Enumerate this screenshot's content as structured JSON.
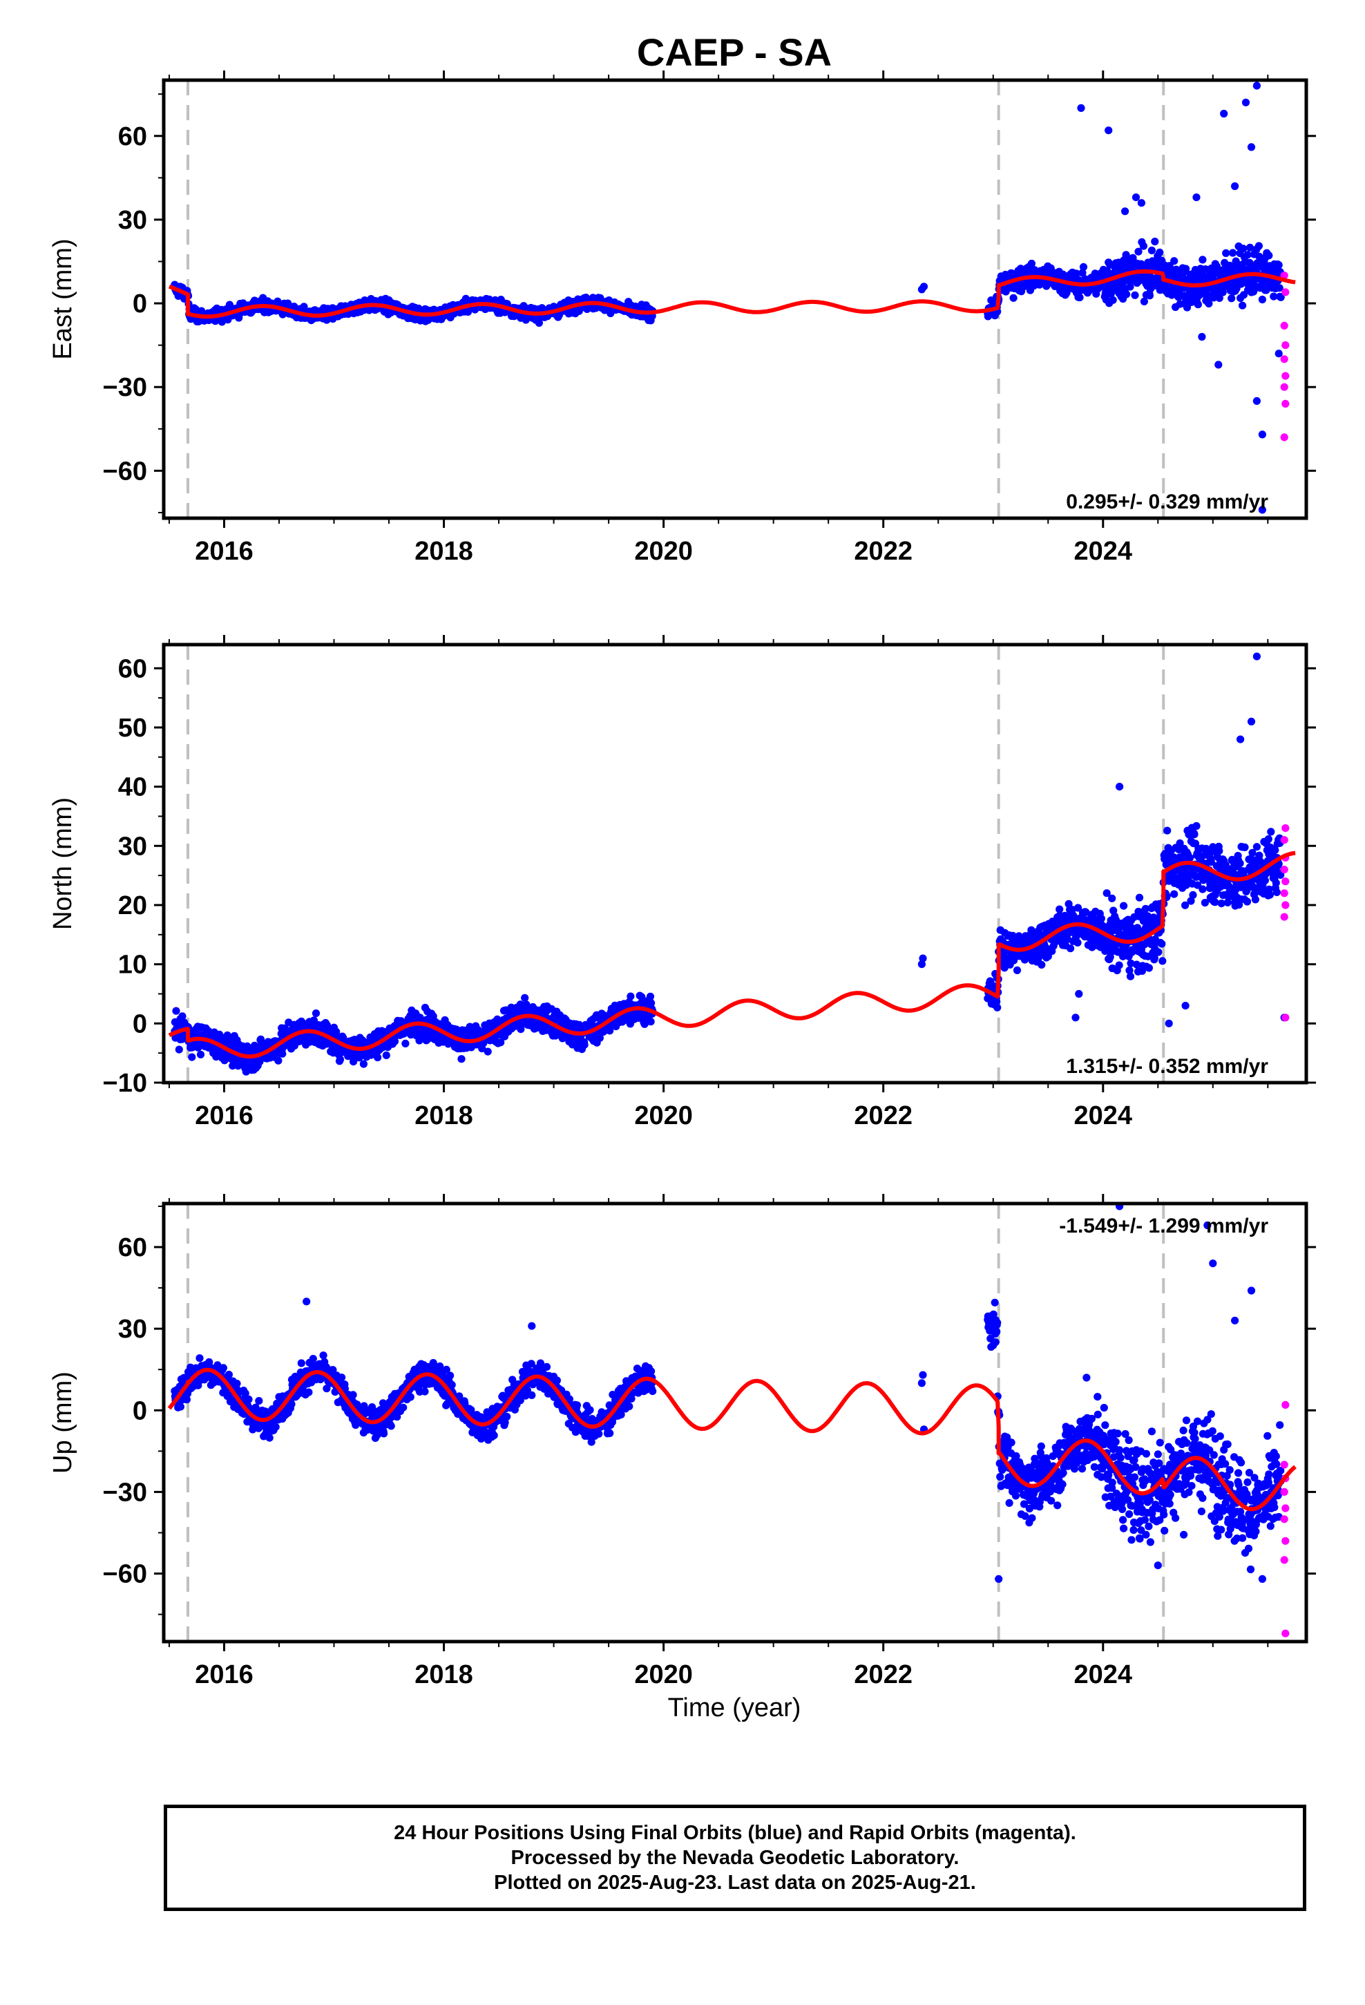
{
  "title": "CAEP - SA",
  "x_axis_label": "Time (year)",
  "footer": {
    "line1": "24 Hour Positions Using Final Orbits (blue) and Rapid Orbits (magenta).",
    "line2": "Processed by the Nevada Geodetic Laboratory.",
    "line3": "Plotted on 2025-Aug-23. Last data on 2025-Aug-21."
  },
  "colors": {
    "final_orbits": "#0000ff",
    "rapid_orbits": "#ff00ff",
    "model_fit": "#ff0000",
    "offset_lines": "#c0c0c0"
  },
  "chart_data": [
    {
      "type": "scatter",
      "panel": "east",
      "ylabel": "East (mm)",
      "xlabel": "",
      "xlim": [
        2015.45,
        2025.85
      ],
      "ylim": [
        -77,
        80
      ],
      "x_ticks": [
        2016,
        2018,
        2020,
        2022,
        2024
      ],
      "y_ticks": [
        -60,
        -30,
        0,
        30,
        60
      ],
      "offsets": [
        2015.67,
        2023.05,
        2024.55
      ],
      "rate_text": "0.295+/- 0.329 mm/yr",
      "rate_position": "bottom-right",
      "grid": false,
      "series": [
        {
          "name": "Final Orbits",
          "color": "#0000ff"
        },
        {
          "name": "Rapid Orbits",
          "color": "#ff00ff"
        },
        {
          "name": "Model",
          "color": "#ff0000"
        }
      ],
      "model": {
        "trend": [
          [
            2015.5,
            5
          ],
          [
            2015.67,
            4
          ],
          [
            2015.68,
            -3
          ],
          [
            2019.9,
            -1.5
          ],
          [
            2023.04,
            -1
          ],
          [
            2023.06,
            7
          ],
          [
            2024.54,
            10
          ],
          [
            2024.56,
            8
          ],
          [
            2025.75,
            9
          ]
        ],
        "amplitude": 1.8,
        "phase": 0.4
      },
      "outliers": [
        [
          2023.8,
          70
        ],
        [
          2024.05,
          62
        ],
        [
          2024.3,
          38
        ],
        [
          2024.35,
          36
        ],
        [
          2024.2,
          33
        ],
        [
          2025.1,
          68
        ],
        [
          2025.3,
          72
        ],
        [
          2025.4,
          78
        ],
        [
          2025.35,
          56
        ],
        [
          2025.2,
          42
        ],
        [
          2024.85,
          38
        ],
        [
          2025.05,
          -22
        ],
        [
          2025.4,
          -35
        ],
        [
          2025.45,
          -47
        ],
        [
          2025.45,
          -74
        ],
        [
          2024.9,
          -12
        ],
        [
          2025.6,
          -18
        ]
      ],
      "rapid_points": [
        [
          2025.65,
          10
        ],
        [
          2025.65,
          -8
        ],
        [
          2025.66,
          -15
        ],
        [
          2025.65,
          -20
        ],
        [
          2025.66,
          -26
        ],
        [
          2025.65,
          -30
        ],
        [
          2025.66,
          -36
        ],
        [
          2025.65,
          -48
        ],
        [
          2025.66,
          4
        ]
      ],
      "gap_points": [
        [
          2022.35,
          5
        ],
        [
          2022.37,
          6
        ]
      ]
    },
    {
      "type": "scatter",
      "panel": "north",
      "ylabel": "North (mm)",
      "xlabel": "",
      "xlim": [
        2015.45,
        2025.85
      ],
      "ylim": [
        -10,
        64
      ],
      "x_ticks": [
        2016,
        2018,
        2020,
        2022,
        2024
      ],
      "y_ticks": [
        -10,
        0,
        10,
        20,
        30,
        40,
        50,
        60
      ],
      "offsets": [
        2015.67,
        2023.05,
        2024.55
      ],
      "rate_text": "1.315+/- 0.352 mm/yr",
      "rate_position": "bottom-right",
      "grid": false,
      "series": [
        {
          "name": "Final Orbits",
          "color": "#0000ff"
        },
        {
          "name": "Rapid Orbits",
          "color": "#ff00ff"
        },
        {
          "name": "Model",
          "color": "#ff0000"
        }
      ],
      "model": {
        "trend": [
          [
            2015.5,
            -2
          ],
          [
            2015.67,
            -2.5
          ],
          [
            2015.68,
            -4.5
          ],
          [
            2023.04,
            5
          ],
          [
            2023.06,
            14
          ],
          [
            2024.54,
            16
          ],
          [
            2024.56,
            25
          ],
          [
            2025.75,
            27
          ]
        ],
        "amplitude": 1.8,
        "phase": 0.0
      },
      "outliers": [
        [
          2024.15,
          40
        ],
        [
          2025.4,
          62
        ],
        [
          2025.35,
          51
        ],
        [
          2025.25,
          48
        ],
        [
          2024.6,
          0
        ],
        [
          2024.75,
          3
        ],
        [
          2023.75,
          1
        ],
        [
          2023.78,
          5
        ],
        [
          2022.35,
          10
        ],
        [
          2022.36,
          11
        ],
        [
          2025.65,
          1
        ]
      ],
      "rapid_points": [
        [
          2025.66,
          33
        ],
        [
          2025.65,
          31
        ],
        [
          2025.66,
          28
        ],
        [
          2025.65,
          26
        ],
        [
          2025.66,
          24
        ],
        [
          2025.65,
          22
        ],
        [
          2025.66,
          20
        ],
        [
          2025.65,
          18
        ],
        [
          2025.66,
          1
        ]
      ],
      "gap_points": []
    },
    {
      "type": "scatter",
      "panel": "up",
      "ylabel": "Up (mm)",
      "xlabel": "Time (year)",
      "xlim": [
        2015.45,
        2025.85
      ],
      "ylim": [
        -85,
        76
      ],
      "x_ticks": [
        2016,
        2018,
        2020,
        2022,
        2024
      ],
      "y_ticks": [
        -60,
        -30,
        0,
        30,
        60
      ],
      "offsets": [
        2015.67,
        2023.05,
        2024.55
      ],
      "rate_text": "-1.549+/- 1.299 mm/yr",
      "rate_position": "top-right",
      "grid": false,
      "series": [
        {
          "name": "Final Orbits",
          "color": "#0000ff"
        },
        {
          "name": "Rapid Orbits",
          "color": "#ff00ff"
        },
        {
          "name": "Model",
          "color": "#ff0000"
        }
      ],
      "model": {
        "trend": [
          [
            2015.5,
            6
          ],
          [
            2015.67,
            6
          ],
          [
            2015.68,
            6
          ],
          [
            2023.04,
            0
          ],
          [
            2023.06,
            -18
          ],
          [
            2024.54,
            -22
          ],
          [
            2024.56,
            -26
          ],
          [
            2025.75,
            -28
          ]
        ],
        "amplitude": 9,
        "phase": -0.1
      },
      "outliers": [
        [
          2016.75,
          40
        ],
        [
          2018.8,
          31
        ],
        [
          2023.05,
          -62
        ],
        [
          2024.15,
          75
        ],
        [
          2024.95,
          68
        ],
        [
          2025.0,
          54
        ],
        [
          2025.35,
          44
        ],
        [
          2025.2,
          33
        ],
        [
          2023.85,
          12
        ],
        [
          2024.5,
          -57
        ],
        [
          2025.45,
          -62
        ],
        [
          2023.95,
          5
        ]
      ],
      "rapid_points": [
        [
          2025.66,
          2
        ],
        [
          2025.65,
          -20
        ],
        [
          2025.66,
          -25
        ],
        [
          2025.65,
          -30
        ],
        [
          2025.66,
          -36
        ],
        [
          2025.65,
          -40
        ],
        [
          2025.66,
          -48
        ],
        [
          2025.65,
          -55
        ],
        [
          2025.66,
          -82
        ]
      ],
      "gap_points": [
        [
          2022.35,
          10
        ],
        [
          2022.36,
          13
        ],
        [
          2022.37,
          -7
        ]
      ]
    }
  ]
}
